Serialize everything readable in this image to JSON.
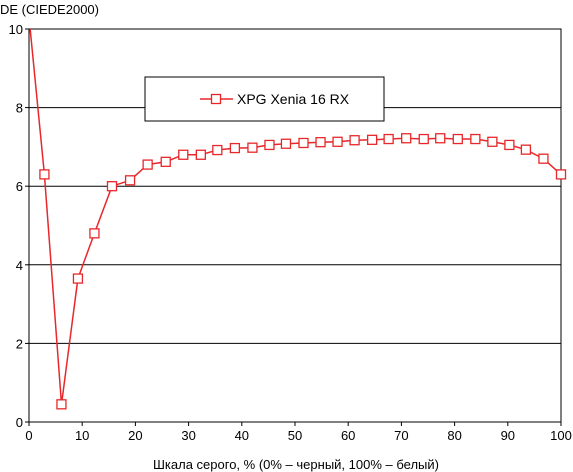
{
  "chart_data": {
    "type": "line",
    "ylabel": "DE (CIEDE2000)",
    "xlabel": "Шкала серого, % (0% – черный, 100% – белый)",
    "xlim": [
      0,
      100
    ],
    "ylim": [
      0,
      10
    ],
    "xticks": [
      0,
      10,
      20,
      30,
      40,
      50,
      60,
      70,
      80,
      90,
      100
    ],
    "yticks": [
      0,
      2,
      4,
      6,
      8,
      10
    ],
    "grid": "horizontal",
    "legend_position": "top-center",
    "series": [
      {
        "name": "XPG Xenia 16 RX",
        "color": "#e8272a",
        "x": [
          0,
          2.9,
          6.1,
          9.2,
          12.3,
          15.6,
          19.0,
          22.3,
          25.7,
          29.0,
          32.3,
          35.4,
          38.7,
          42.0,
          45.2,
          48.3,
          51.6,
          54.8,
          58.0,
          61.2,
          64.5,
          67.6,
          70.9,
          74.2,
          77.3,
          80.6,
          83.9,
          87.1,
          90.3,
          93.4,
          96.7,
          100
        ],
        "y": [
          10.3,
          6.3,
          0.45,
          3.65,
          4.8,
          6.0,
          6.15,
          6.55,
          6.62,
          6.8,
          6.8,
          6.92,
          6.97,
          6.98,
          7.05,
          7.08,
          7.1,
          7.12,
          7.13,
          7.17,
          7.18,
          7.2,
          7.22,
          7.2,
          7.22,
          7.2,
          7.2,
          7.13,
          7.05,
          6.93,
          6.7,
          6.3
        ]
      }
    ]
  }
}
